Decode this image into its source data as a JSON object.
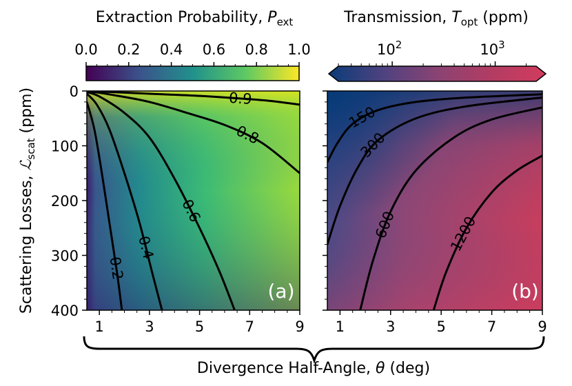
{
  "chart_data": [
    {
      "type": "heatmap",
      "panel": "(a)",
      "colorbar": {
        "title_text": "Extraction Probability, ",
        "title_symbol": "P",
        "title_subscript": "ext",
        "scale": "linear",
        "range": [
          0.0,
          1.0
        ],
        "ticks": [
          0.0,
          0.2,
          0.4,
          0.6,
          0.8,
          1.0
        ],
        "tick_labels": [
          "0.0",
          "0.2",
          "0.4",
          "0.6",
          "0.8",
          "1.0"
        ],
        "colormap": "viridis",
        "colors": [
          "#440154",
          "#3b528b",
          "#21918c",
          "#5ec962",
          "#fde725"
        ]
      },
      "x_range": [
        0.5,
        9
      ],
      "y_range": [
        0,
        400
      ],
      "contours": [
        {
          "label": "0.2",
          "value": 0.2,
          "points": [
            [
              0.5,
              20
            ],
            [
              0.8,
              70
            ],
            [
              1.1,
              150
            ],
            [
              1.4,
              240
            ],
            [
              1.7,
              330
            ],
            [
              1.9,
              400
            ]
          ]
        },
        {
          "label": "0.4",
          "value": 0.4,
          "points": [
            [
              0.5,
              5
            ],
            [
              0.9,
              25
            ],
            [
              1.4,
              70
            ],
            [
              2.0,
              150
            ],
            [
              2.6,
              240
            ],
            [
              3.1,
              330
            ],
            [
              3.5,
              400
            ]
          ]
        },
        {
          "label": "0.6",
          "value": 0.6,
          "points": [
            [
              0.5,
              2
            ],
            [
              1.0,
              10
            ],
            [
              2.0,
              40
            ],
            [
              3.0,
              85
            ],
            [
              4.0,
              160
            ],
            [
              5.0,
              250
            ],
            [
              5.8,
              330
            ],
            [
              6.4,
              400
            ]
          ]
        },
        {
          "label": "0.8",
          "value": 0.8,
          "points": [
            [
              0.5,
              0
            ],
            [
              1.5,
              7
            ],
            [
              3.0,
              20
            ],
            [
              4.5,
              40
            ],
            [
              6.0,
              62
            ],
            [
              7.5,
              95
            ],
            [
              9.0,
              150
            ]
          ]
        },
        {
          "label": "0.9",
          "value": 0.9,
          "points": [
            [
              0.5,
              0
            ],
            [
              3.0,
              5
            ],
            [
              5.0,
              9
            ],
            [
              7.0,
              15
            ],
            [
              8.0,
              19
            ],
            [
              9.0,
              25
            ]
          ]
        }
      ],
      "panel_label": "(a)"
    },
    {
      "type": "heatmap",
      "panel": "(b)",
      "colorbar": {
        "title_text": "Transmission, ",
        "title_symbol": "T",
        "title_subscript": "opt",
        "title_unit": " (ppm)",
        "scale": "log",
        "range": [
          30,
          2500
        ],
        "ticks": [
          100,
          1000
        ],
        "tick_base": "10",
        "tick_exponents": [
          "2",
          "3"
        ],
        "extend": "both",
        "colors": [
          "#0a3c78",
          "#4e4280",
          "#8a4373",
          "#b33c63",
          "#d23c5e"
        ]
      },
      "x_range": [
        0.5,
        9
      ],
      "y_range": [
        0,
        400
      ],
      "contours": [
        {
          "label": "150",
          "value": 150,
          "points": [
            [
              0.5,
              130
            ],
            [
              0.9,
              95
            ],
            [
              1.5,
              60
            ],
            [
              2.5,
              35
            ],
            [
              4.0,
              20
            ],
            [
              6.0,
              12
            ],
            [
              9.0,
              6
            ]
          ]
        },
        {
          "label": "300",
          "value": 300,
          "points": [
            [
              0.5,
              280
            ],
            [
              1.0,
              210
            ],
            [
              1.7,
              140
            ],
            [
              2.5,
              90
            ],
            [
              4.0,
              50
            ],
            [
              6.0,
              28
            ],
            [
              9.0,
              12
            ]
          ]
        },
        {
          "label": "600",
          "value": 600,
          "points": [
            [
              1.8,
              400
            ],
            [
              2.3,
              310
            ],
            [
              3.0,
              220
            ],
            [
              4.0,
              145
            ],
            [
              5.5,
              85
            ],
            [
              7.0,
              52
            ],
            [
              9.0,
              30
            ]
          ]
        },
        {
          "label": "1200",
          "value": 1200,
          "points": [
            [
              4.7,
              400
            ],
            [
              5.2,
              330
            ],
            [
              6.0,
              250
            ],
            [
              7.0,
              185
            ],
            [
              8.0,
              145
            ],
            [
              9.0,
              118
            ]
          ]
        }
      ],
      "panel_label": "(b)"
    }
  ],
  "axes": {
    "y_label_text": "Scattering Losses, ",
    "y_label_symbol": "ℒ",
    "y_label_subscript": "scat",
    "y_label_unit": " (ppm)",
    "y_ticks": [
      0,
      100,
      200,
      300,
      400
    ],
    "y_tick_labels": [
      "0",
      "100",
      "200",
      "300",
      "400"
    ],
    "x_ticks": [
      1,
      3,
      5,
      7,
      9
    ],
    "x_tick_labels": [
      "1",
      "3",
      "5",
      "7",
      "9"
    ],
    "x_label_text": "Divergence Half-Angle, ",
    "x_label_symbol": "θ",
    "x_label_unit": " (deg)"
  }
}
